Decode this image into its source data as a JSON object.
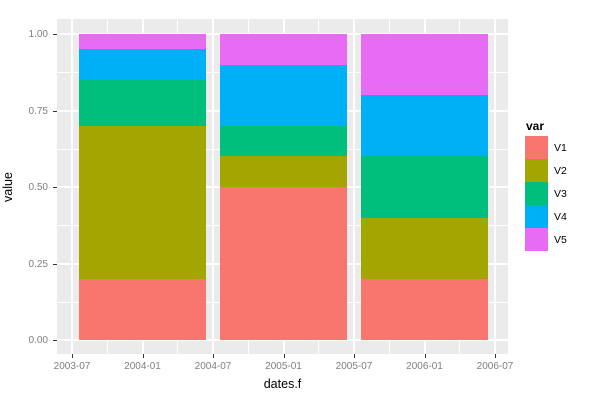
{
  "chart_data": {
    "type": "bar",
    "stacked": true,
    "normalized": true,
    "title": "",
    "xlabel": "dates.f",
    "ylabel": "value",
    "legend_title": "var",
    "legend_position": "right",
    "grid": true,
    "ylim": [
      0,
      1
    ],
    "y_tick_values": [
      0.0,
      0.25,
      0.5,
      0.75,
      1.0
    ],
    "y_tick_labels": [
      "0.00",
      "0.25",
      "0.50",
      "0.75",
      "1.00"
    ],
    "x_tick_labels": [
      "2003-07",
      "2004-01",
      "2004-07",
      "2005-01",
      "2005-07",
      "2006-01",
      "2006-07"
    ],
    "categories": [
      "2004-01",
      "2005-01",
      "2006-01"
    ],
    "series": [
      {
        "name": "V1",
        "color": "#F8766D",
        "values": [
          0.2,
          0.5,
          0.2
        ]
      },
      {
        "name": "V2",
        "color": "#A3A500",
        "values": [
          0.5,
          0.1,
          0.2
        ]
      },
      {
        "name": "V3",
        "color": "#00BF7D",
        "values": [
          0.15,
          0.1,
          0.2
        ]
      },
      {
        "name": "V4",
        "color": "#00B0F6",
        "values": [
          0.1,
          0.2,
          0.2
        ]
      },
      {
        "name": "V5",
        "color": "#E76BF3",
        "values": [
          0.05,
          0.1,
          0.2
        ]
      }
    ],
    "theme": {
      "panel_background": "#EBEBEB",
      "grid_color": "#FFFFFF",
      "axis_text_color": "#7F7F7F",
      "axis_title_color": "#000000",
      "tick_mark_color": "#333333",
      "outer_background": "#FFFFFF"
    }
  }
}
